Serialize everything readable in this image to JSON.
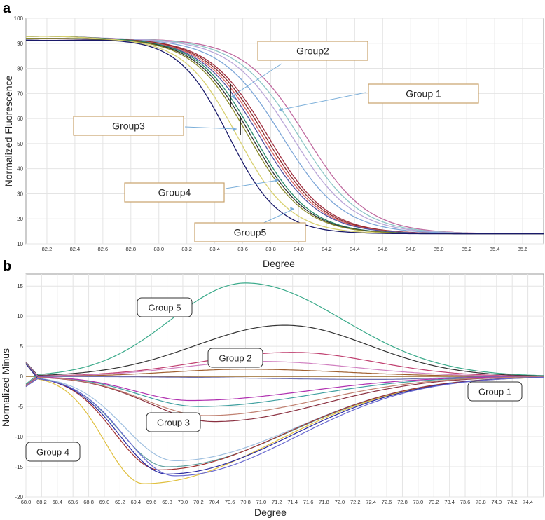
{
  "chart_data": [
    {
      "panel": "a",
      "type": "line",
      "xlabel": "Degree",
      "ylabel": "Normalized Fluorescence",
      "xlim": [
        82.05,
        85.75
      ],
      "ylim": [
        10,
        100
      ],
      "x_ticks": [
        "82.2",
        "82.4",
        "82.6",
        "82.8",
        "83.0",
        "83.2",
        "83.4",
        "83.6",
        "83.8",
        "84.0",
        "84.2",
        "84.4",
        "84.6",
        "84.8",
        "85.0",
        "85.2",
        "85.4",
        "85.6"
      ],
      "y_ticks": [
        "10",
        "20",
        "30",
        "40",
        "50",
        "60",
        "70",
        "80",
        "90",
        "100"
      ],
      "grid": true,
      "series": [
        {
          "color": "#c06ba0",
          "midpoint": 84.05,
          "width": 0.22
        },
        {
          "color": "#8fc7c7",
          "midpoint": 84.0,
          "width": 0.22
        },
        {
          "color": "#b9a6d8",
          "midpoint": 83.95,
          "width": 0.22
        },
        {
          "color": "#7ea7d8",
          "midpoint": 83.88,
          "width": 0.22
        },
        {
          "color": "#a03040",
          "midpoint": 83.78,
          "width": 0.21
        },
        {
          "color": "#8a2a2a",
          "midpoint": 83.76,
          "width": 0.21
        },
        {
          "color": "#d86060",
          "midpoint": 83.74,
          "width": 0.21
        },
        {
          "color": "#5050a0",
          "midpoint": 83.72,
          "width": 0.21
        },
        {
          "color": "#2a8a6a",
          "midpoint": 83.68,
          "width": 0.2
        },
        {
          "color": "#303030",
          "midpoint": 83.66,
          "width": 0.2
        },
        {
          "color": "#8a8a2a",
          "midpoint": 83.64,
          "width": 0.2
        },
        {
          "color": "#d8d070",
          "midpoint": 83.56,
          "width": 0.19
        },
        {
          "color": "#1a1a6a",
          "midpoint": 83.5,
          "width": 0.18
        }
      ],
      "callouts": [
        {
          "text": "Group2"
        },
        {
          "text": "Group 1"
        },
        {
          "text": "Group3"
        },
        {
          "text": "Group4"
        },
        {
          "text": "Group5"
        }
      ]
    },
    {
      "panel": "b",
      "type": "line",
      "xlabel": "Degree",
      "ylabel": "Normalized Minus",
      "xlim": [
        68.0,
        74.6
      ],
      "ylim": [
        -20,
        17
      ],
      "x_ticks": [
        "68.0",
        "68.2",
        "68.4",
        "68.6",
        "68.8",
        "69.0",
        "69.2",
        "69.4",
        "69.6",
        "69.8",
        "70.0",
        "70.2",
        "70.4",
        "70.6",
        "70.8",
        "71.0",
        "71.2",
        "71.4",
        "71.6",
        "71.8",
        "72.0",
        "72.2",
        "72.4",
        "72.6",
        "72.8",
        "73.0",
        "73.2",
        "73.4",
        "73.6",
        "73.8",
        "74.0",
        "74.2",
        "74.4"
      ],
      "y_ticks": [
        "15",
        "10",
        "5",
        "0",
        "-5",
        "-10",
        "-15",
        "-20"
      ],
      "grid": true,
      "series": [
        {
          "color": "#3aaa8a",
          "peak_x": 70.8,
          "peak_y": 15.5
        },
        {
          "color": "#333333",
          "peak_x": 71.3,
          "peak_y": 8.5
        },
        {
          "color": "#c04070",
          "peak_x": 71.4,
          "peak_y": 4
        },
        {
          "color": "#d080c0",
          "peak_x": 71.0,
          "peak_y": 2.5
        },
        {
          "color": "#a06030",
          "peak_x": 70.8,
          "peak_y": 1.2
        },
        {
          "color": "#ffffff",
          "peak_x": 71.0,
          "peak_y": 0
        },
        {
          "color": "#7070b0",
          "peak_x": 72.5,
          "peak_y": -0.5
        },
        {
          "color": "#40a0a0",
          "peak_x": 70.2,
          "peak_y": -5
        },
        {
          "color": "#b030b0",
          "peak_x": 70.1,
          "peak_y": -4
        },
        {
          "color": "#8a3040",
          "peak_x": 70.4,
          "peak_y": -7.5
        },
        {
          "color": "#c08070",
          "peak_x": 70.3,
          "peak_y": -6.5
        },
        {
          "color": "#a0c0e0",
          "peak_x": 69.9,
          "peak_y": -14
        },
        {
          "color": "#60a0a0",
          "peak_x": 69.8,
          "peak_y": -15
        },
        {
          "color": "#e0c040",
          "peak_x": 69.5,
          "peak_y": -17.8
        },
        {
          "color": "#a03030",
          "peak_x": 69.7,
          "peak_y": -15.5
        },
        {
          "color": "#2a2aa0",
          "peak_x": 69.8,
          "peak_y": -16.2
        },
        {
          "color": "#6a6ad0",
          "peak_x": 69.9,
          "peak_y": -16.5
        }
      ],
      "callouts": [
        {
          "text": "Group 5"
        },
        {
          "text": "Group 2"
        },
        {
          "text": "Group 1"
        },
        {
          "text": "Group 3"
        },
        {
          "text": "Group 4"
        }
      ]
    }
  ],
  "panel_labels": {
    "a": "a",
    "b": "b"
  }
}
